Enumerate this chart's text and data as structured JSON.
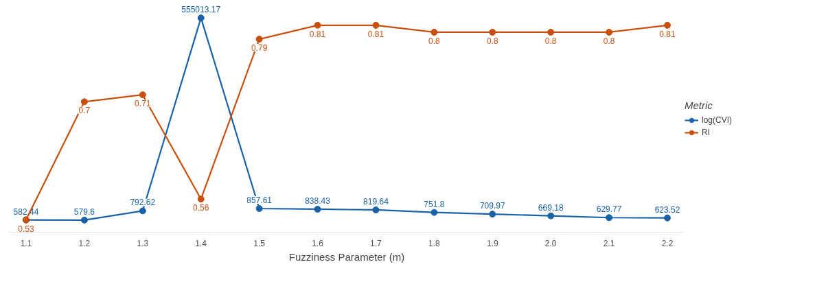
{
  "chart_data": {
    "type": "line",
    "xlabel": "Fuzziness Parameter (m)",
    "legend_title": "Metric",
    "x": [
      1.1,
      1.2,
      1.3,
      1.4,
      1.5,
      1.6,
      1.7,
      1.8,
      1.9,
      2.0,
      2.1,
      2.2
    ],
    "xticks": [
      1.1,
      1.2,
      1.3,
      1.4,
      1.5,
      1.6,
      1.7,
      1.8,
      1.9,
      {
        "value": 2.0,
        "label": "2.0"
      },
      2.1,
      2.2
    ],
    "xlim": [
      1.07,
      2.23
    ],
    "log": "y",
    "series": [
      {
        "name": "log(CVI)",
        "color": "#1a62a8",
        "values": [
          582.44,
          579.6,
          792.62,
          555013.17,
          857.61,
          838.43,
          819.64,
          751.8,
          709.97,
          669.18,
          629.77,
          623.52
        ]
      },
      {
        "name": "RI",
        "color": "#c8500e",
        "axis": "y2",
        "values": [
          0.53,
          0.7,
          0.71,
          0.56,
          0.79,
          0.81,
          0.81,
          0.8,
          0.8,
          0.8,
          0.8,
          0.81
        ]
      }
    ],
    "data_labels": true,
    "marker": "circle",
    "line_style": "solid",
    "grid": false,
    "legend": "right",
    "tick_labels": "x"
  }
}
